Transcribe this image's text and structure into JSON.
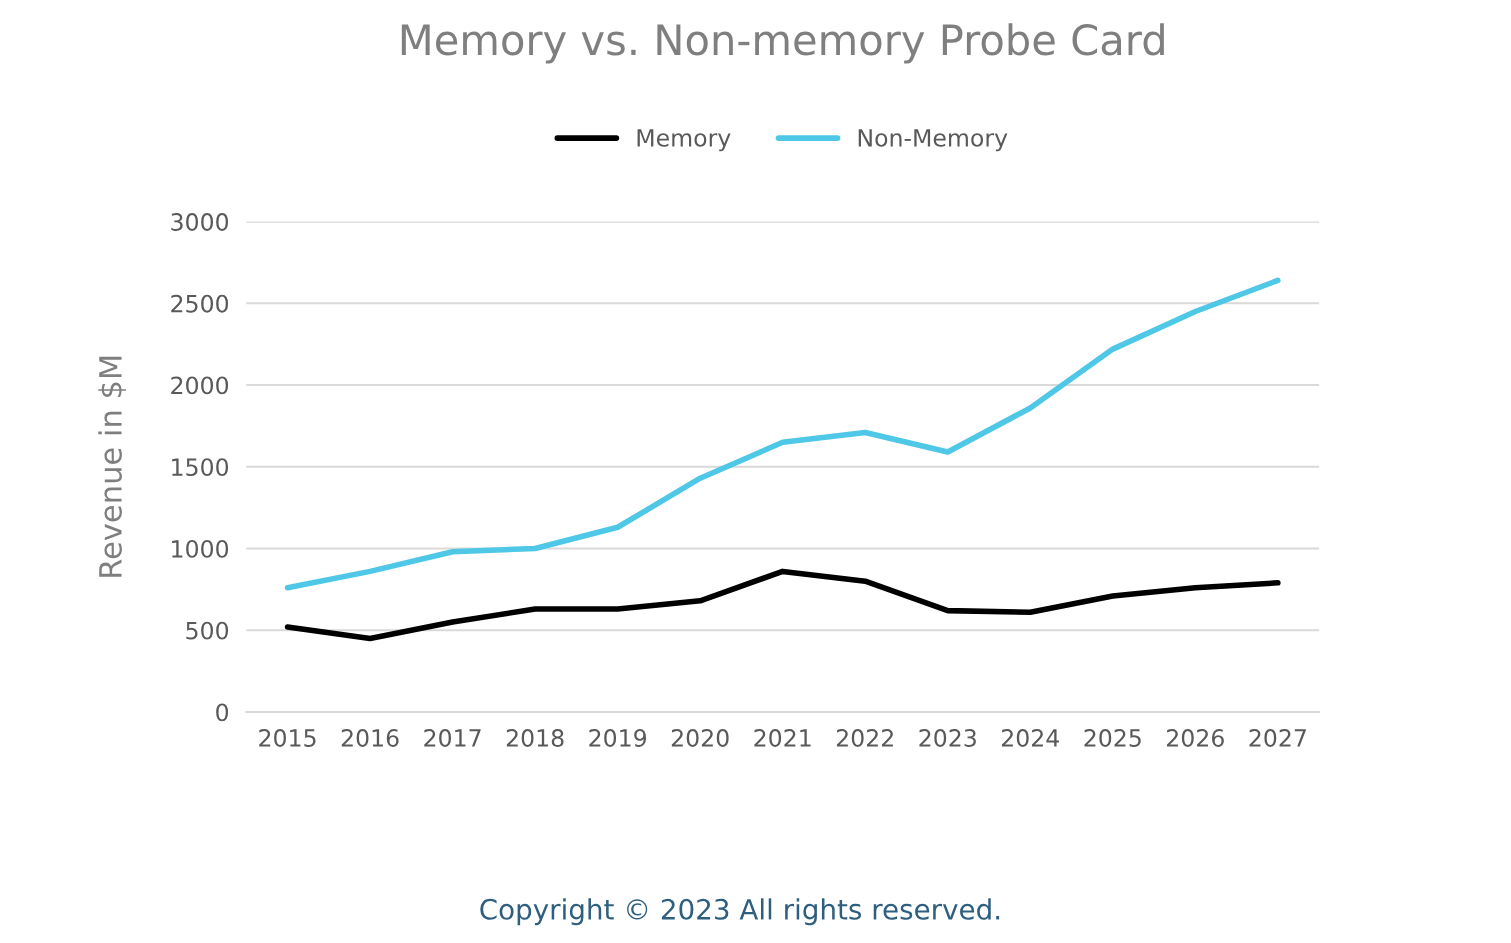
{
  "chart_data": {
    "type": "line",
    "title": "Memory vs. Non-memory Probe Card",
    "ylabel": "Revenue in $M",
    "categories": [
      "2015",
      "2016",
      "2017",
      "2018",
      "2019",
      "2020",
      "2021",
      "2022",
      "2023",
      "2024",
      "2025",
      "2026",
      "2027"
    ],
    "series": [
      {
        "name": "Memory",
        "color": "#000000",
        "values": [
          520,
          450,
          550,
          630,
          630,
          680,
          860,
          800,
          620,
          610,
          710,
          760,
          790
        ]
      },
      {
        "name": "Non-Memory",
        "color": "#4ec8e6",
        "values": [
          760,
          860,
          980,
          1000,
          1130,
          1430,
          1650,
          1710,
          1590,
          1860,
          2220,
          2450,
          2640
        ]
      }
    ],
    "ylim": [
      0,
      3000
    ],
    "yticks": [
      0,
      500,
      1000,
      1500,
      2000,
      2500,
      3000
    ],
    "grid": "y",
    "legend": "top",
    "marker": "none",
    "line_style": "solid",
    "annotations": [
      "Copyright © 2023 All rights reserved."
    ]
  }
}
